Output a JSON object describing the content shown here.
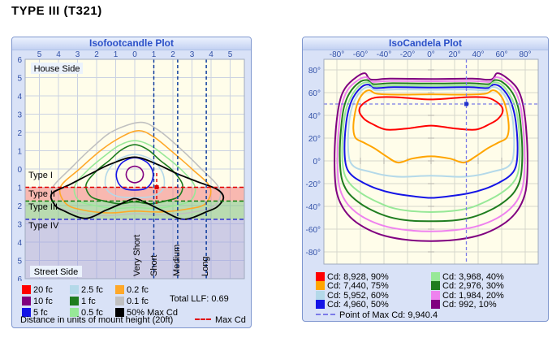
{
  "page_title": "TYPE III (T321)",
  "left_panel": {
    "title": "Isofootcandle Plot",
    "house_side": "House Side",
    "street_side": "Street Side",
    "x_ticks": [
      "5",
      "4",
      "3",
      "2",
      "1",
      "0",
      "1",
      "2",
      "3",
      "4",
      "5"
    ],
    "y_ticks": [
      "6",
      "5",
      "4",
      "3",
      "2",
      "1",
      "0",
      "1",
      "2",
      "3",
      "4",
      "5",
      "6"
    ],
    "type_labels": [
      "Type I",
      "Type II",
      "Type III",
      "Type IV"
    ],
    "distance_labels": [
      "Very Short",
      "Short",
      "Medium",
      "Long"
    ],
    "legend": [
      {
        "label": "20 fc",
        "color": "#FF0000"
      },
      {
        "label": "2.5 fc",
        "color": "#B4D9E9"
      },
      {
        "label": "0.2 fc",
        "color": "#FFA828"
      },
      {
        "label": "10 fc",
        "color": "#800080"
      },
      {
        "label": "1 fc",
        "color": "#1F7D1F"
      },
      {
        "label": "0.1 fc",
        "color": "#C0C0C0"
      },
      {
        "label": "5 fc",
        "color": "#1414E6"
      },
      {
        "label": "0.5 fc",
        "color": "#97E897"
      },
      {
        "label": "50% Max Cd",
        "color": "#000000"
      }
    ],
    "total_llf": "Total LLF: 0.69",
    "footnote": "Distance in units of mount height (20ft)",
    "max_cd_label": "Max Cd"
  },
  "right_panel": {
    "title": "IsoCandela Plot",
    "x_ticks": [
      "-80°",
      "-60°",
      "-40°",
      "-20°",
      "0°",
      "20°",
      "40°",
      "60°",
      "80°"
    ],
    "y_ticks": [
      "80°",
      "60°",
      "40°",
      "20°",
      "0°",
      "-20°",
      "-40°",
      "-60°",
      "-80°"
    ],
    "legend": [
      {
        "label": "Cd: 8,928, 90%",
        "color": "#FF0000"
      },
      {
        "label": "Cd: 3,968, 40%",
        "color": "#97E897"
      },
      {
        "label": "Cd: 7,440, 75%",
        "color": "#FFA500"
      },
      {
        "label": "Cd: 2,976, 30%",
        "color": "#1F7D1F"
      },
      {
        "label": "Cd: 5,952, 60%",
        "color": "#B4D9E9"
      },
      {
        "label": "Cd: 1,984, 20%",
        "color": "#EE82EE"
      },
      {
        "label": "Cd: 4,960, 50%",
        "color": "#1414E6"
      },
      {
        "label": "Cd: 992, 10%",
        "color": "#800080"
      }
    ],
    "max_cd_note": "Point of Max Cd: 9,940.4"
  },
  "chart_data": [
    {
      "type": "contour",
      "title": "Isofootcandle Plot",
      "xlabel": "Distance in units of mount height (20ft)",
      "x_range_mh": [
        -5.75,
        6.0
      ],
      "y_range_mh_house_to_street": [
        -6,
        6
      ],
      "grid_step_mh": 1,
      "contour_levels_fc": [
        20,
        10,
        5,
        2.5,
        1,
        0.5,
        0.2,
        0.1
      ],
      "special_contour": "50% Max Cd",
      "type_classification_boundaries_mh": [
        1.0,
        1.75,
        2.75
      ],
      "type_labels": [
        "Type I",
        "Type II",
        "Type III",
        "Type IV"
      ],
      "throw_boundaries_mh": {
        "very_short_to_short": 1.0,
        "short_to_medium": 2.25,
        "medium_to_long": 3.75
      },
      "max_cd_point_mh": [
        1.15,
        1.05
      ],
      "total_llf": 0.69,
      "mount_height_ft": 20
    },
    {
      "type": "contour",
      "title": "IsoCandela Plot",
      "x_range_deg": [
        -91,
        91
      ],
      "y_range_deg": [
        -91,
        91
      ],
      "grid_step_deg": 20,
      "levels": [
        {
          "cd": 8928,
          "percent": 90
        },
        {
          "cd": 7440,
          "percent": 75
        },
        {
          "cd": 5952,
          "percent": 60
        },
        {
          "cd": 4960,
          "percent": 50
        },
        {
          "cd": 3968,
          "percent": 40
        },
        {
          "cd": 2976,
          "percent": 30
        },
        {
          "cd": 1984,
          "percent": 20
        },
        {
          "cd": 992,
          "percent": 10
        }
      ],
      "point_of_max_cd": 9940.4,
      "max_cd_location_deg": [
        30,
        50
      ]
    }
  ]
}
